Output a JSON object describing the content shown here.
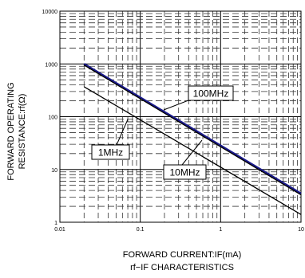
{
  "chart_data": {
    "type": "line",
    "title": "rf−IF CHARACTERISTICS",
    "xlabel": "FORWARD CURRENT:IF(mA)",
    "ylabel": [
      "FORWARD OPERATING",
      "RESISTANCE:rf(Ω)"
    ],
    "x_scale": "log",
    "y_scale": "log",
    "xlim": [
      0.01,
      10
    ],
    "ylim": [
      1,
      10000
    ],
    "grid": true,
    "x_ticks": [
      {
        "value": 0.01,
        "label": "0.01"
      },
      {
        "value": 0.1,
        "label": "0.1"
      },
      {
        "value": 1,
        "label": "1"
      },
      {
        "value": 10,
        "label": "10"
      }
    ],
    "y_ticks": [
      {
        "value": 1,
        "label": "1"
      },
      {
        "value": 10,
        "label": "10"
      },
      {
        "value": 100,
        "label": "100"
      },
      {
        "value": 1000,
        "label": "1000"
      },
      {
        "value": 10000,
        "label": "10000"
      }
    ],
    "series": [
      {
        "name": "100MHz",
        "color": "#1a1a8c",
        "x": [
          0.02,
          10
        ],
        "y": [
          1000,
          3.5
        ]
      },
      {
        "name": "1MHz",
        "color": "#000000",
        "x": [
          0.02,
          10
        ],
        "y": [
          950,
          3.3
        ]
      },
      {
        "name": "10MHz",
        "color": "#000000",
        "x": [
          0.02,
          10
        ],
        "y": [
          370,
          1.4
        ]
      }
    ],
    "annotations": [
      {
        "text": "100MHz",
        "series": "100MHz"
      },
      {
        "text": "1MHz",
        "series": "1MHz"
      },
      {
        "text": "10MHz",
        "series": "10MHz"
      }
    ]
  }
}
